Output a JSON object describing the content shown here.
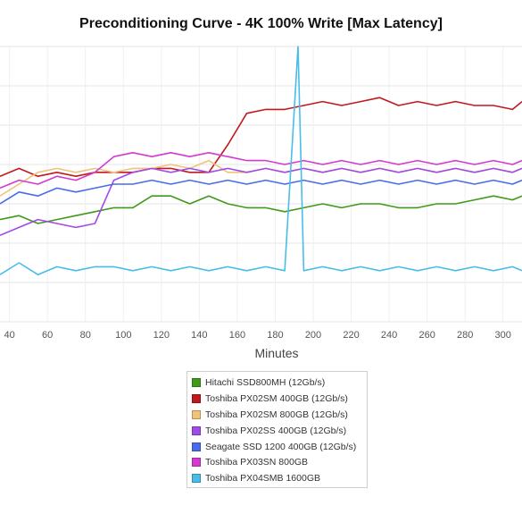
{
  "chart_data": {
    "type": "line",
    "title": "Preconditioning Curve - 4K 100% Write [Max Latency]",
    "xlabel": "Minutes",
    "ylabel": "",
    "x_ticks": [
      40,
      60,
      80,
      100,
      120,
      140,
      160,
      180,
      200,
      220,
      240,
      260,
      280,
      300
    ],
    "xlim": [
      35,
      310
    ],
    "ylim": [
      0,
      7
    ],
    "grid": true,
    "legend_position": "bottom-center",
    "series": [
      {
        "name": "Hitachi SSD800MH (12Gb/s)",
        "color": "#3f9a1a",
        "x": [
          35,
          45,
          55,
          65,
          75,
          85,
          95,
          105,
          115,
          125,
          135,
          145,
          155,
          165,
          175,
          185,
          195,
          205,
          215,
          225,
          235,
          245,
          255,
          265,
          275,
          285,
          295,
          305,
          310
        ],
        "y": [
          2.6,
          2.7,
          2.5,
          2.6,
          2.7,
          2.8,
          2.9,
          2.9,
          3.2,
          3.2,
          3.0,
          3.2,
          3.0,
          2.9,
          2.9,
          2.8,
          2.9,
          3.0,
          2.9,
          3.0,
          3.0,
          2.9,
          2.9,
          3.0,
          3.0,
          3.1,
          3.2,
          3.1,
          3.2
        ]
      },
      {
        "name": "Toshiba PX02SM 400GB (12Gb/s)",
        "color": "#c0191f",
        "x": [
          35,
          45,
          55,
          65,
          75,
          85,
          95,
          105,
          115,
          125,
          135,
          145,
          155,
          165,
          175,
          185,
          195,
          205,
          215,
          225,
          235,
          245,
          255,
          265,
          275,
          285,
          295,
          305,
          310
        ],
        "y": [
          3.7,
          3.9,
          3.7,
          3.8,
          3.7,
          3.8,
          3.8,
          3.8,
          3.9,
          3.9,
          3.8,
          3.8,
          4.5,
          5.3,
          5.4,
          5.4,
          5.5,
          5.6,
          5.5,
          5.6,
          5.7,
          5.5,
          5.6,
          5.5,
          5.6,
          5.5,
          5.5,
          5.4,
          5.6
        ]
      },
      {
        "name": "Toshiba PX02SM 800GB (12Gb/s)",
        "color": "#f0c27a",
        "x": [
          35,
          45,
          55,
          65,
          75,
          85,
          95,
          105,
          115,
          125,
          135,
          145,
          155,
          165,
          175,
          185,
          195,
          205,
          215,
          225,
          235,
          245,
          255,
          265,
          275,
          285,
          295,
          305,
          310
        ],
        "y": [
          3.2,
          3.5,
          3.8,
          3.9,
          3.8,
          3.9,
          3.8,
          3.9,
          3.9,
          4.0,
          3.9,
          4.1,
          3.8,
          3.8,
          3.9,
          3.8,
          3.9,
          3.8,
          3.9,
          3.8,
          3.9,
          3.8,
          3.9,
          3.8,
          3.9,
          3.8,
          3.9,
          3.8,
          3.9
        ]
      },
      {
        "name": "Toshiba PX02SS 400GB (12Gb/s)",
        "color": "#a14ae8",
        "x": [
          35,
          45,
          55,
          65,
          75,
          85,
          95,
          105,
          115,
          125,
          135,
          145,
          155,
          165,
          175,
          185,
          195,
          205,
          215,
          225,
          235,
          245,
          255,
          265,
          275,
          285,
          295,
          305,
          310
        ],
        "y": [
          2.2,
          2.4,
          2.6,
          2.5,
          2.4,
          2.5,
          3.6,
          3.8,
          3.9,
          3.8,
          3.9,
          3.8,
          3.9,
          3.8,
          3.9,
          3.8,
          3.9,
          3.8,
          3.9,
          3.8,
          3.9,
          3.8,
          3.9,
          3.8,
          3.9,
          3.8,
          3.9,
          3.8,
          3.9
        ]
      },
      {
        "name": "Seagate SSD 1200 400GB (12Gb/s)",
        "color": "#4a6be8",
        "x": [
          35,
          45,
          55,
          65,
          75,
          85,
          95,
          105,
          115,
          125,
          135,
          145,
          155,
          165,
          175,
          185,
          195,
          205,
          215,
          225,
          235,
          245,
          255,
          265,
          275,
          285,
          295,
          305,
          310
        ],
        "y": [
          3.0,
          3.3,
          3.2,
          3.4,
          3.3,
          3.4,
          3.5,
          3.5,
          3.6,
          3.5,
          3.6,
          3.5,
          3.6,
          3.5,
          3.6,
          3.5,
          3.6,
          3.5,
          3.6,
          3.5,
          3.6,
          3.5,
          3.6,
          3.5,
          3.6,
          3.5,
          3.6,
          3.5,
          3.6
        ]
      },
      {
        "name": "Toshiba PX03SN 800GB",
        "color": "#d23ad0",
        "x": [
          35,
          45,
          55,
          65,
          75,
          85,
          95,
          105,
          115,
          125,
          135,
          145,
          155,
          165,
          175,
          185,
          195,
          205,
          215,
          225,
          235,
          245,
          255,
          265,
          275,
          285,
          295,
          305,
          310
        ],
        "y": [
          3.4,
          3.6,
          3.5,
          3.7,
          3.6,
          3.8,
          4.2,
          4.3,
          4.2,
          4.3,
          4.2,
          4.3,
          4.2,
          4.1,
          4.1,
          4.0,
          4.1,
          4.0,
          4.1,
          4.0,
          4.1,
          4.0,
          4.1,
          4.0,
          4.1,
          4.0,
          4.1,
          4.0,
          4.1
        ]
      },
      {
        "name": "Toshiba PX04SMB 1600GB",
        "color": "#47bde8",
        "x": [
          35,
          45,
          55,
          65,
          75,
          85,
          95,
          105,
          115,
          125,
          135,
          145,
          155,
          165,
          175,
          185,
          192,
          195,
          205,
          215,
          225,
          235,
          245,
          255,
          265,
          275,
          285,
          295,
          305,
          310
        ],
        "y": [
          1.2,
          1.5,
          1.2,
          1.4,
          1.3,
          1.4,
          1.4,
          1.3,
          1.4,
          1.3,
          1.4,
          1.3,
          1.4,
          1.3,
          1.4,
          1.3,
          7.0,
          1.3,
          1.4,
          1.3,
          1.4,
          1.3,
          1.4,
          1.3,
          1.4,
          1.3,
          1.4,
          1.3,
          1.4,
          1.3
        ]
      }
    ]
  }
}
